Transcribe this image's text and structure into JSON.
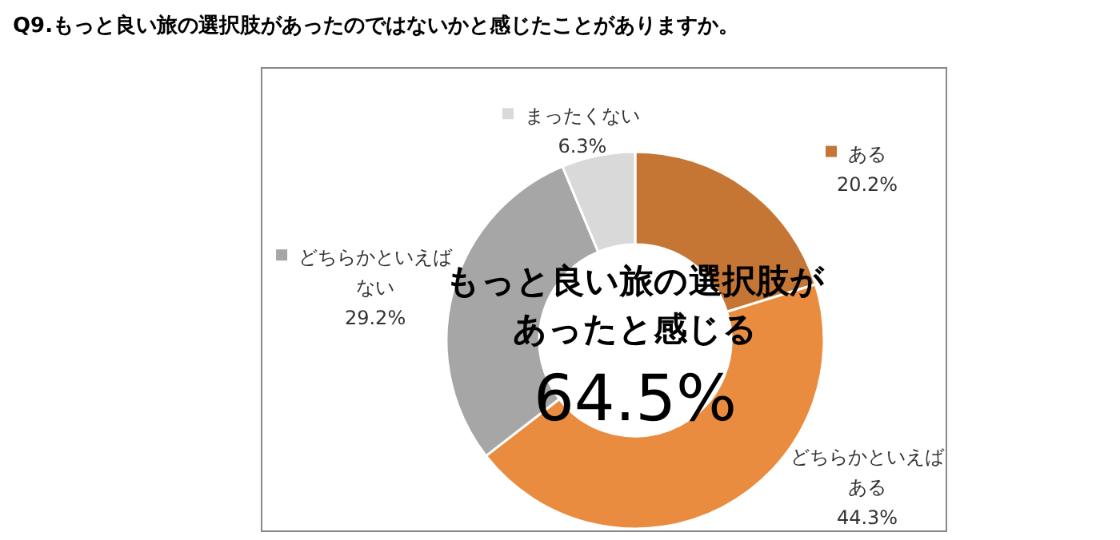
{
  "chart_data": {
    "type": "donut",
    "title": "Q9.もっと良い旅の選択肢があったのではないかと感じたことがありますか。",
    "categories": [
      "ある",
      "どちらかといえばある",
      "どちらかといえばない",
      "まったくない"
    ],
    "values": [
      20.2,
      44.3,
      29.2,
      6.3
    ],
    "colors": [
      "#c57634",
      "#ea8c3f",
      "#a6a6a6",
      "#d9d9d9"
    ],
    "value_labels": [
      "20.2%",
      "44.3%",
      "29.2%",
      "6.3%"
    ],
    "legend": "top",
    "annotations": [
      "もっと良い旅の選択肢が",
      "あったと感じる",
      "64.5%"
    ]
  }
}
